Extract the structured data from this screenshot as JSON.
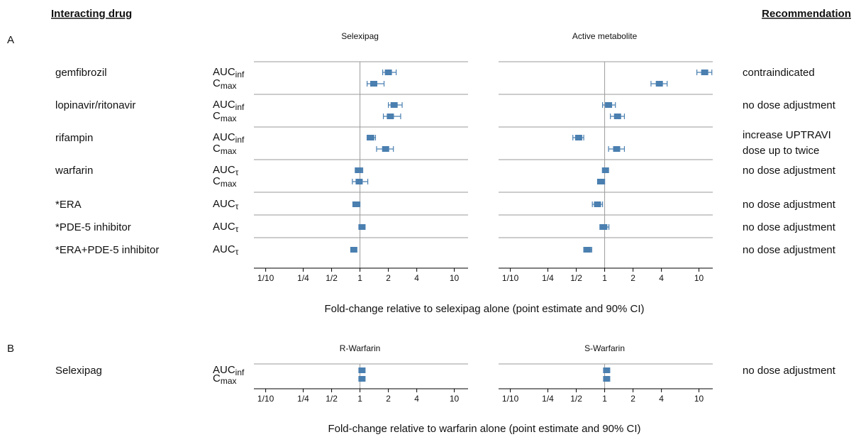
{
  "headers": {
    "drug": "Interacting drug",
    "recommendation": "Recommendation"
  },
  "sections": [
    {
      "label": "A",
      "xlabel": "Fold-change relative to selexipag alone (point estimate and 90% CI)",
      "rows": [
        {
          "drug": "gemfibrozil",
          "recommendation": [
            "contraindicated"
          ],
          "measures": [
            {
              "name": "AUC",
              "sub": "inf"
            },
            {
              "name": "C",
              "sub": "max"
            }
          ]
        },
        {
          "drug": "lopinavir/ritonavir",
          "recommendation": [
            "no dose adjustment"
          ],
          "measures": [
            {
              "name": "AUC",
              "sub": "inf"
            },
            {
              "name": "C",
              "sub": "max"
            }
          ]
        },
        {
          "drug": "rifampin",
          "recommendation": [
            "increase UPTRAVI",
            "dose up to twice"
          ],
          "measures": [
            {
              "name": "AUC",
              "sub": "inf"
            },
            {
              "name": "C",
              "sub": "max"
            }
          ]
        },
        {
          "drug": "warfarin",
          "recommendation": [
            "no dose adjustment"
          ],
          "measures": [
            {
              "name": "AUC",
              "sub": "τ"
            },
            {
              "name": "C",
              "sub": "max"
            }
          ]
        },
        {
          "drug": "*ERA",
          "recommendation": [
            "no dose adjustment"
          ],
          "measures": [
            {
              "name": "AUC",
              "sub": "τ"
            }
          ]
        },
        {
          "drug": "*PDE-5 inhibitor",
          "recommendation": [
            "no dose adjustment"
          ],
          "measures": [
            {
              "name": "AUC",
              "sub": "τ"
            }
          ]
        },
        {
          "drug": "*ERA+PDE-5 inhibitor",
          "recommendation": [
            "no dose adjustment"
          ],
          "measures": [
            {
              "name": "AUC",
              "sub": "τ"
            }
          ]
        }
      ]
    },
    {
      "label": "B",
      "xlabel": "Fold-change relative to warfarin alone (point estimate and 90% CI)",
      "rows": [
        {
          "drug": "Selexipag",
          "recommendation": [
            "no dose adjustment"
          ],
          "measures": [
            {
              "name": "AUC",
              "sub": "inf"
            },
            {
              "name": "C",
              "sub": "max"
            }
          ]
        }
      ]
    }
  ],
  "chart_data": [
    {
      "type": "forest",
      "title": "Selexipag",
      "xscale": "log",
      "xlim": [
        0.075,
        14
      ],
      "xticks": [
        {
          "value": 0.1,
          "label": "1/10"
        },
        {
          "value": 0.25,
          "label": "1/4"
        },
        {
          "value": 0.5,
          "label": "1/2"
        },
        1,
        2,
        4,
        10
      ],
      "refline": 1,
      "color": "#4a7fb0",
      "values": [
        2.0,
        1.4,
        2.3,
        2.1,
        1.3,
        1.87,
        0.97,
        0.98,
        0.92,
        1.05,
        0.86
      ],
      "lower": [
        1.74,
        1.19,
        2.0,
        1.77,
        1.19,
        1.5,
        0.89,
        0.83,
        0.84,
        1.0,
        0.8
      ],
      "upper": [
        2.42,
        1.8,
        2.8,
        2.7,
        1.46,
        2.26,
        1.07,
        1.21,
        1.0,
        1.13,
        0.92
      ]
    },
    {
      "type": "forest",
      "title": "Active metabolite",
      "xscale": "log",
      "xlim": [
        0.075,
        14
      ],
      "xticks": [
        {
          "value": 0.1,
          "label": "1/10"
        },
        {
          "value": 0.25,
          "label": "1/4"
        },
        {
          "value": 0.5,
          "label": "1/2"
        },
        1,
        2,
        4,
        10
      ],
      "refline": 1,
      "color": "#4a7fb0",
      "values": [
        11.5,
        3.8,
        1.1,
        1.37,
        0.53,
        1.34,
        1.02,
        0.92,
        0.84,
        0.98,
        0.66
      ],
      "lower": [
        9.5,
        3.1,
        0.95,
        1.15,
        0.46,
        1.1,
        0.95,
        0.84,
        0.74,
        0.89,
        0.6
      ],
      "upper": [
        13.7,
        4.6,
        1.3,
        1.62,
        0.6,
        1.62,
        1.09,
        1.0,
        0.95,
        1.11,
        0.73
      ]
    },
    {
      "type": "forest",
      "title": "R-Warfarin",
      "xscale": "log",
      "xlim": [
        0.075,
        14
      ],
      "xticks": [
        {
          "value": 0.1,
          "label": "1/10"
        },
        {
          "value": 0.25,
          "label": "1/4"
        },
        {
          "value": 0.5,
          "label": "1/2"
        },
        1,
        2,
        4,
        10
      ],
      "refline": 1,
      "color": "#4a7fb0",
      "values": [
        1.05,
        1.05
      ],
      "lower": [
        1.0,
        1.0
      ],
      "upper": [
        1.1,
        1.1
      ]
    },
    {
      "type": "forest",
      "title": "S-Warfarin",
      "xscale": "log",
      "xlim": [
        0.075,
        14
      ],
      "xticks": [
        {
          "value": 0.1,
          "label": "1/10"
        },
        {
          "value": 0.25,
          "label": "1/4"
        },
        {
          "value": 0.5,
          "label": "1/2"
        },
        1,
        2,
        4,
        10
      ],
      "refline": 1,
      "color": "#4a7fb0",
      "values": [
        1.05,
        1.05
      ],
      "lower": [
        1.0,
        1.0
      ],
      "upper": [
        1.1,
        1.1
      ]
    }
  ]
}
